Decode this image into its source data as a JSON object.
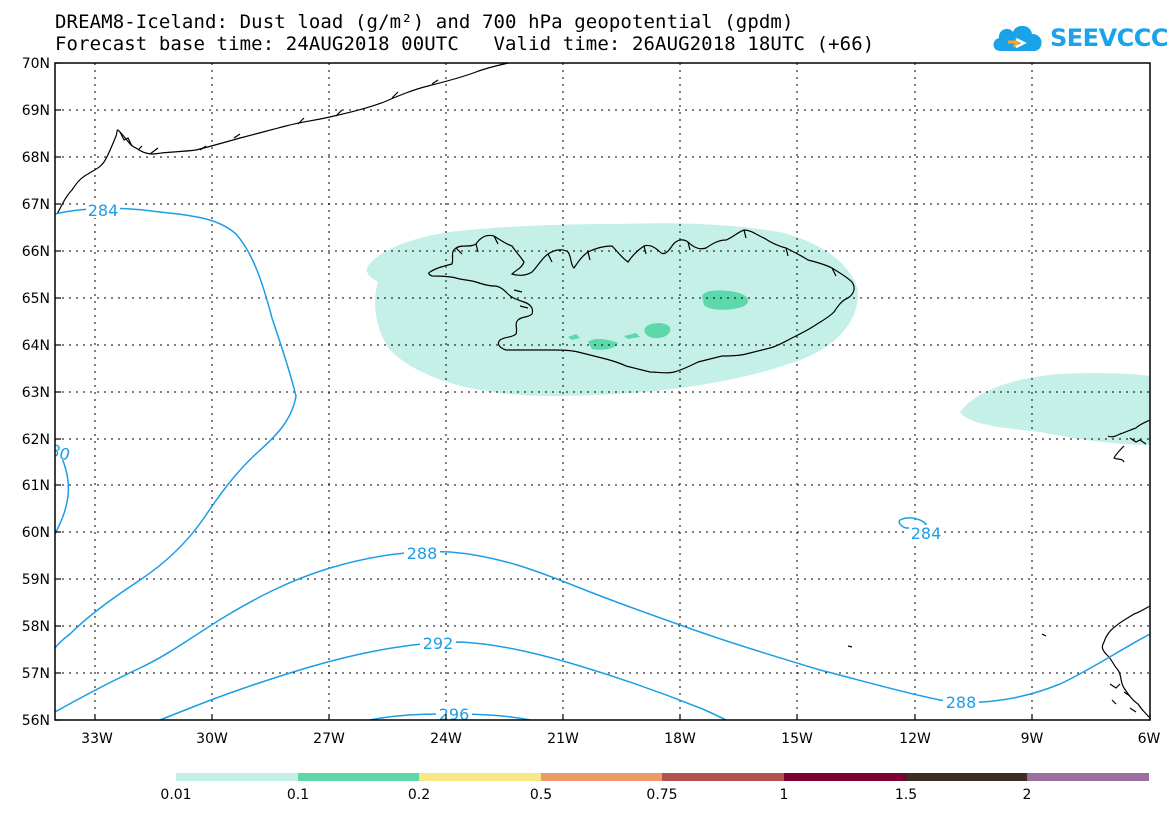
{
  "title_line1": "DREAM8-Iceland: Dust load (g/m²) and 700 hPa geopotential (gpdm)",
  "title_line2": "Forecast base time: 24AUG2018 00UTC   Valid time: 26AUG2018 18UTC (+66)",
  "logo_text": "SEEVCCC",
  "lat_labels": [
    "70N",
    "69N",
    "68N",
    "67N",
    "66N",
    "65N",
    "64N",
    "63N",
    "62N",
    "61N",
    "60N",
    "59N",
    "58N",
    "57N",
    "56N"
  ],
  "lon_labels": [
    "33W",
    "30W",
    "27W",
    "24W",
    "21W",
    "18W",
    "15W",
    "12W",
    "9W",
    "6W"
  ],
  "contours": {
    "c284_a": "284",
    "c280": "80",
    "c284_b": "284",
    "c288_a": "288",
    "c288_b": "288",
    "c292": "292",
    "c296": "296"
  },
  "legend": {
    "labels": [
      "0.01",
      "0.1",
      "0.2",
      "0.5",
      "0.75",
      "1",
      "1.5",
      "2"
    ],
    "colors": [
      "#c4f0e8",
      "#5dd8ab",
      "#f6e886",
      "#ed9968",
      "#b0524f",
      "#7c0032",
      "#3d2e22",
      "#9b6e9e"
    ]
  },
  "colors": {
    "contour": "#1c9de6",
    "dust_low": "#c4f0e8",
    "dust_mid": "#5dd8ab",
    "coast": "#000000"
  }
}
